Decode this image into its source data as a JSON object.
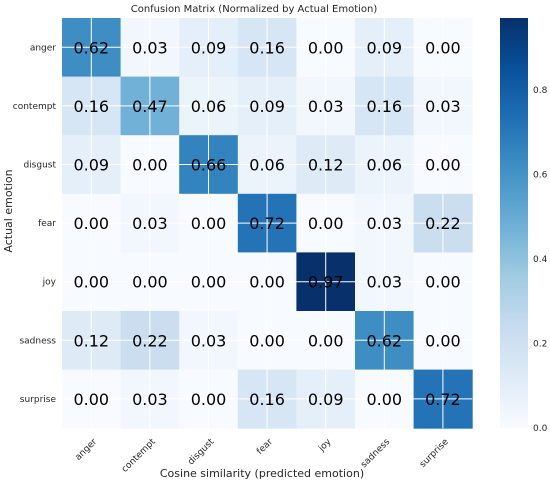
{
  "chart_data": {
    "type": "heatmap",
    "title": "Confusion Matrix (Normalized by Actual Emotion)",
    "xlabel": "Cosine similarity (predicted emotion)",
    "ylabel": "Actual emotion",
    "x_categories": [
      "anger",
      "contempt",
      "disgust",
      "fear",
      "joy",
      "sadness",
      "surprise"
    ],
    "y_categories": [
      "anger",
      "contempt",
      "disgust",
      "fear",
      "joy",
      "sadness",
      "surprise"
    ],
    "values": [
      [
        0.62,
        0.03,
        0.09,
        0.16,
        0.0,
        0.09,
        0.0
      ],
      [
        0.16,
        0.47,
        0.06,
        0.09,
        0.03,
        0.16,
        0.03
      ],
      [
        0.09,
        0.0,
        0.66,
        0.06,
        0.12,
        0.06,
        0.0
      ],
      [
        0.0,
        0.03,
        0.0,
        0.72,
        0.0,
        0.03,
        0.22
      ],
      [
        0.0,
        0.0,
        0.0,
        0.0,
        0.97,
        0.03,
        0.0
      ],
      [
        0.12,
        0.22,
        0.03,
        0.0,
        0.0,
        0.62,
        0.0
      ],
      [
        0.0,
        0.03,
        0.0,
        0.16,
        0.09,
        0.0,
        0.72
      ]
    ],
    "colormap": "Blues",
    "colorbar": {
      "range": [
        0,
        0.97
      ],
      "ticks": [
        0.0,
        0.2,
        0.4,
        0.6,
        0.8
      ],
      "tick_labels": [
        "0.0",
        "0.2",
        "0.4",
        "0.6",
        "0.8"
      ]
    },
    "grid": true
  }
}
